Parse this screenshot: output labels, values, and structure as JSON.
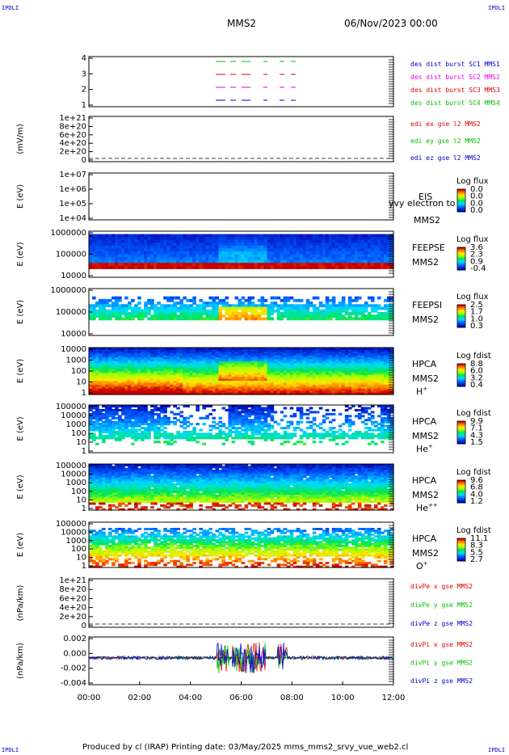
{
  "corners": {
    "tl": "IPDLI",
    "tr": "IPDLI",
    "bl": "IPDLI",
    "br": "IPDLI"
  },
  "header": {
    "spacecraft": "MMS2",
    "date": "06/Nov/2023 00:00"
  },
  "footer": {
    "text": "Produced by cl (IRAP)   Printing date: 03/May/2025   mms_mms2_srvy_vue_web2.cl"
  },
  "colors": {
    "red": "#e00000",
    "green": "#00c000",
    "blue": "#0000cc",
    "magenta": "#e000e0"
  },
  "chart_data": [
    {
      "id": "p1",
      "type": "line",
      "ylim": [
        0.5,
        4.5
      ],
      "yticks": [
        "4",
        "3",
        "2",
        "1"
      ],
      "ylabel": "",
      "labels": [
        {
          "text": "des dist burst SC1 MMS1",
          "color": "#0000cc"
        },
        {
          "text": "des dist burst SC2 MMS2",
          "color": "#e000e0"
        },
        {
          "text": "des dist burst SC3 MMS3",
          "color": "#e00000"
        },
        {
          "text": "des dist burst SC4 MMS4",
          "color": "#00c000"
        }
      ],
      "series": [
        {
          "y": 4,
          "color": "#00c000"
        },
        {
          "y": 3,
          "color": "#e00000"
        },
        {
          "y": 2,
          "color": "#e000e0"
        },
        {
          "y": 1,
          "color": "#0000cc"
        }
      ]
    },
    {
      "id": "p2",
      "type": "line",
      "ylabel": "(mV/m)",
      "yticks": [
        "1e+21",
        "8e+20",
        "6e+20",
        "4e+20",
        "2e+20",
        "0"
      ],
      "labels": [
        {
          "text": "edi ex gse l2 MMS2",
          "color": "#e00000"
        },
        {
          "text": "edi ey gse l2 MMS2",
          "color": "#00c000"
        },
        {
          "text": "edi ez gse l2 MMS2",
          "color": "#0000cc"
        }
      ]
    },
    {
      "id": "p3",
      "type": "heatmap",
      "ylabel": "E (eV)",
      "yticks": [
        "1e+07",
        "1e+06",
        "1e+05",
        "1e+04"
      ],
      "labels": [
        "EIS",
        "MMS2"
      ],
      "overlay": "yvy electron to",
      "cbar_title": "Log flux",
      "cbar_ticks": [
        "0.0",
        "0.0",
        "0.0",
        "0.0"
      ]
    },
    {
      "id": "p4",
      "type": "heatmap",
      "ylabel": "E (eV)",
      "yticks": [
        "1000000",
        "100000",
        "10000"
      ],
      "labels": [
        "FEEPSE",
        "MMS2"
      ],
      "cbar_title": "Log flux",
      "cbar_ticks": [
        "3.6",
        "2.3",
        "0.9",
        "-0.4"
      ]
    },
    {
      "id": "p5",
      "type": "heatmap",
      "ylabel": "E (eV)",
      "yticks": [
        "1000000",
        "100000",
        "10000"
      ],
      "labels": [
        "FEEPSI",
        "MMS2"
      ],
      "cbar_title": "Log flux",
      "cbar_ticks": [
        "2.5",
        "1.7",
        "1.0",
        "0.3"
      ]
    },
    {
      "id": "p6",
      "type": "heatmap",
      "ylabel": "E (eV)",
      "yticks": [
        "10000",
        "1000",
        "100",
        "10",
        "1"
      ],
      "labels": [
        "HPCA",
        "MMS2",
        "H+"
      ],
      "cbar_title": "Log fdist",
      "cbar_ticks": [
        "8.8",
        "6.0",
        "3.2",
        "0.4"
      ]
    },
    {
      "id": "p7",
      "type": "heatmap",
      "ylabel": "E (eV)",
      "yticks": [
        "100000",
        "10000",
        "1000",
        "100",
        "10",
        "1"
      ],
      "labels": [
        "HPCA",
        "MMS2",
        "He+"
      ],
      "cbar_title": "Log fdist",
      "cbar_ticks": [
        "9.9",
        "7.1",
        "4.3",
        "1.5"
      ]
    },
    {
      "id": "p8",
      "type": "heatmap",
      "ylabel": "E (eV)",
      "yticks": [
        "100000",
        "10000",
        "1000",
        "100",
        "10",
        "1"
      ],
      "labels": [
        "HPCA",
        "MMS2",
        "He++"
      ],
      "cbar_title": "Log fdist",
      "cbar_ticks": [
        "9.6",
        "6.8",
        "4.0",
        "1.2"
      ]
    },
    {
      "id": "p9",
      "type": "heatmap",
      "ylabel": "E (eV)",
      "yticks": [
        "100000",
        "10000",
        "1000",
        "100",
        "10",
        "1"
      ],
      "labels": [
        "HPCA",
        "MMS2",
        "O+"
      ],
      "cbar_title": "Log fdist",
      "cbar_ticks": [
        "11.1",
        "8.3",
        "5.5",
        "2.7"
      ]
    },
    {
      "id": "p10",
      "type": "line",
      "ylabel": "(nPa/km)",
      "yticks": [
        "1e+21",
        "8e+20",
        "6e+20",
        "4e+20",
        "2e+20",
        "0"
      ],
      "labels": [
        {
          "text": "divPe x gse MMS2",
          "color": "#e00000"
        },
        {
          "text": "divPe y gse MMS2",
          "color": "#00c000"
        },
        {
          "text": "divPe z gse MMS2",
          "color": "#0000cc"
        }
      ]
    },
    {
      "id": "p11",
      "type": "line",
      "ylabel": "(nPa/km)",
      "ylim": [
        -0.0045,
        0.0035
      ],
      "yticks": [
        "0.002",
        "0.000",
        "-0.002",
        "-0.004"
      ],
      "labels": [
        {
          "text": "divPi x gse MMS2",
          "color": "#e00000"
        },
        {
          "text": "divPi y gse MMS2",
          "color": "#00c000"
        },
        {
          "text": "divPi z gse MMS2",
          "color": "#0000cc"
        }
      ]
    }
  ],
  "xaxis": {
    "ticks": [
      "00:00",
      "02:00",
      "04:00",
      "06:00",
      "08:00",
      "10:00",
      "12:00"
    ]
  }
}
